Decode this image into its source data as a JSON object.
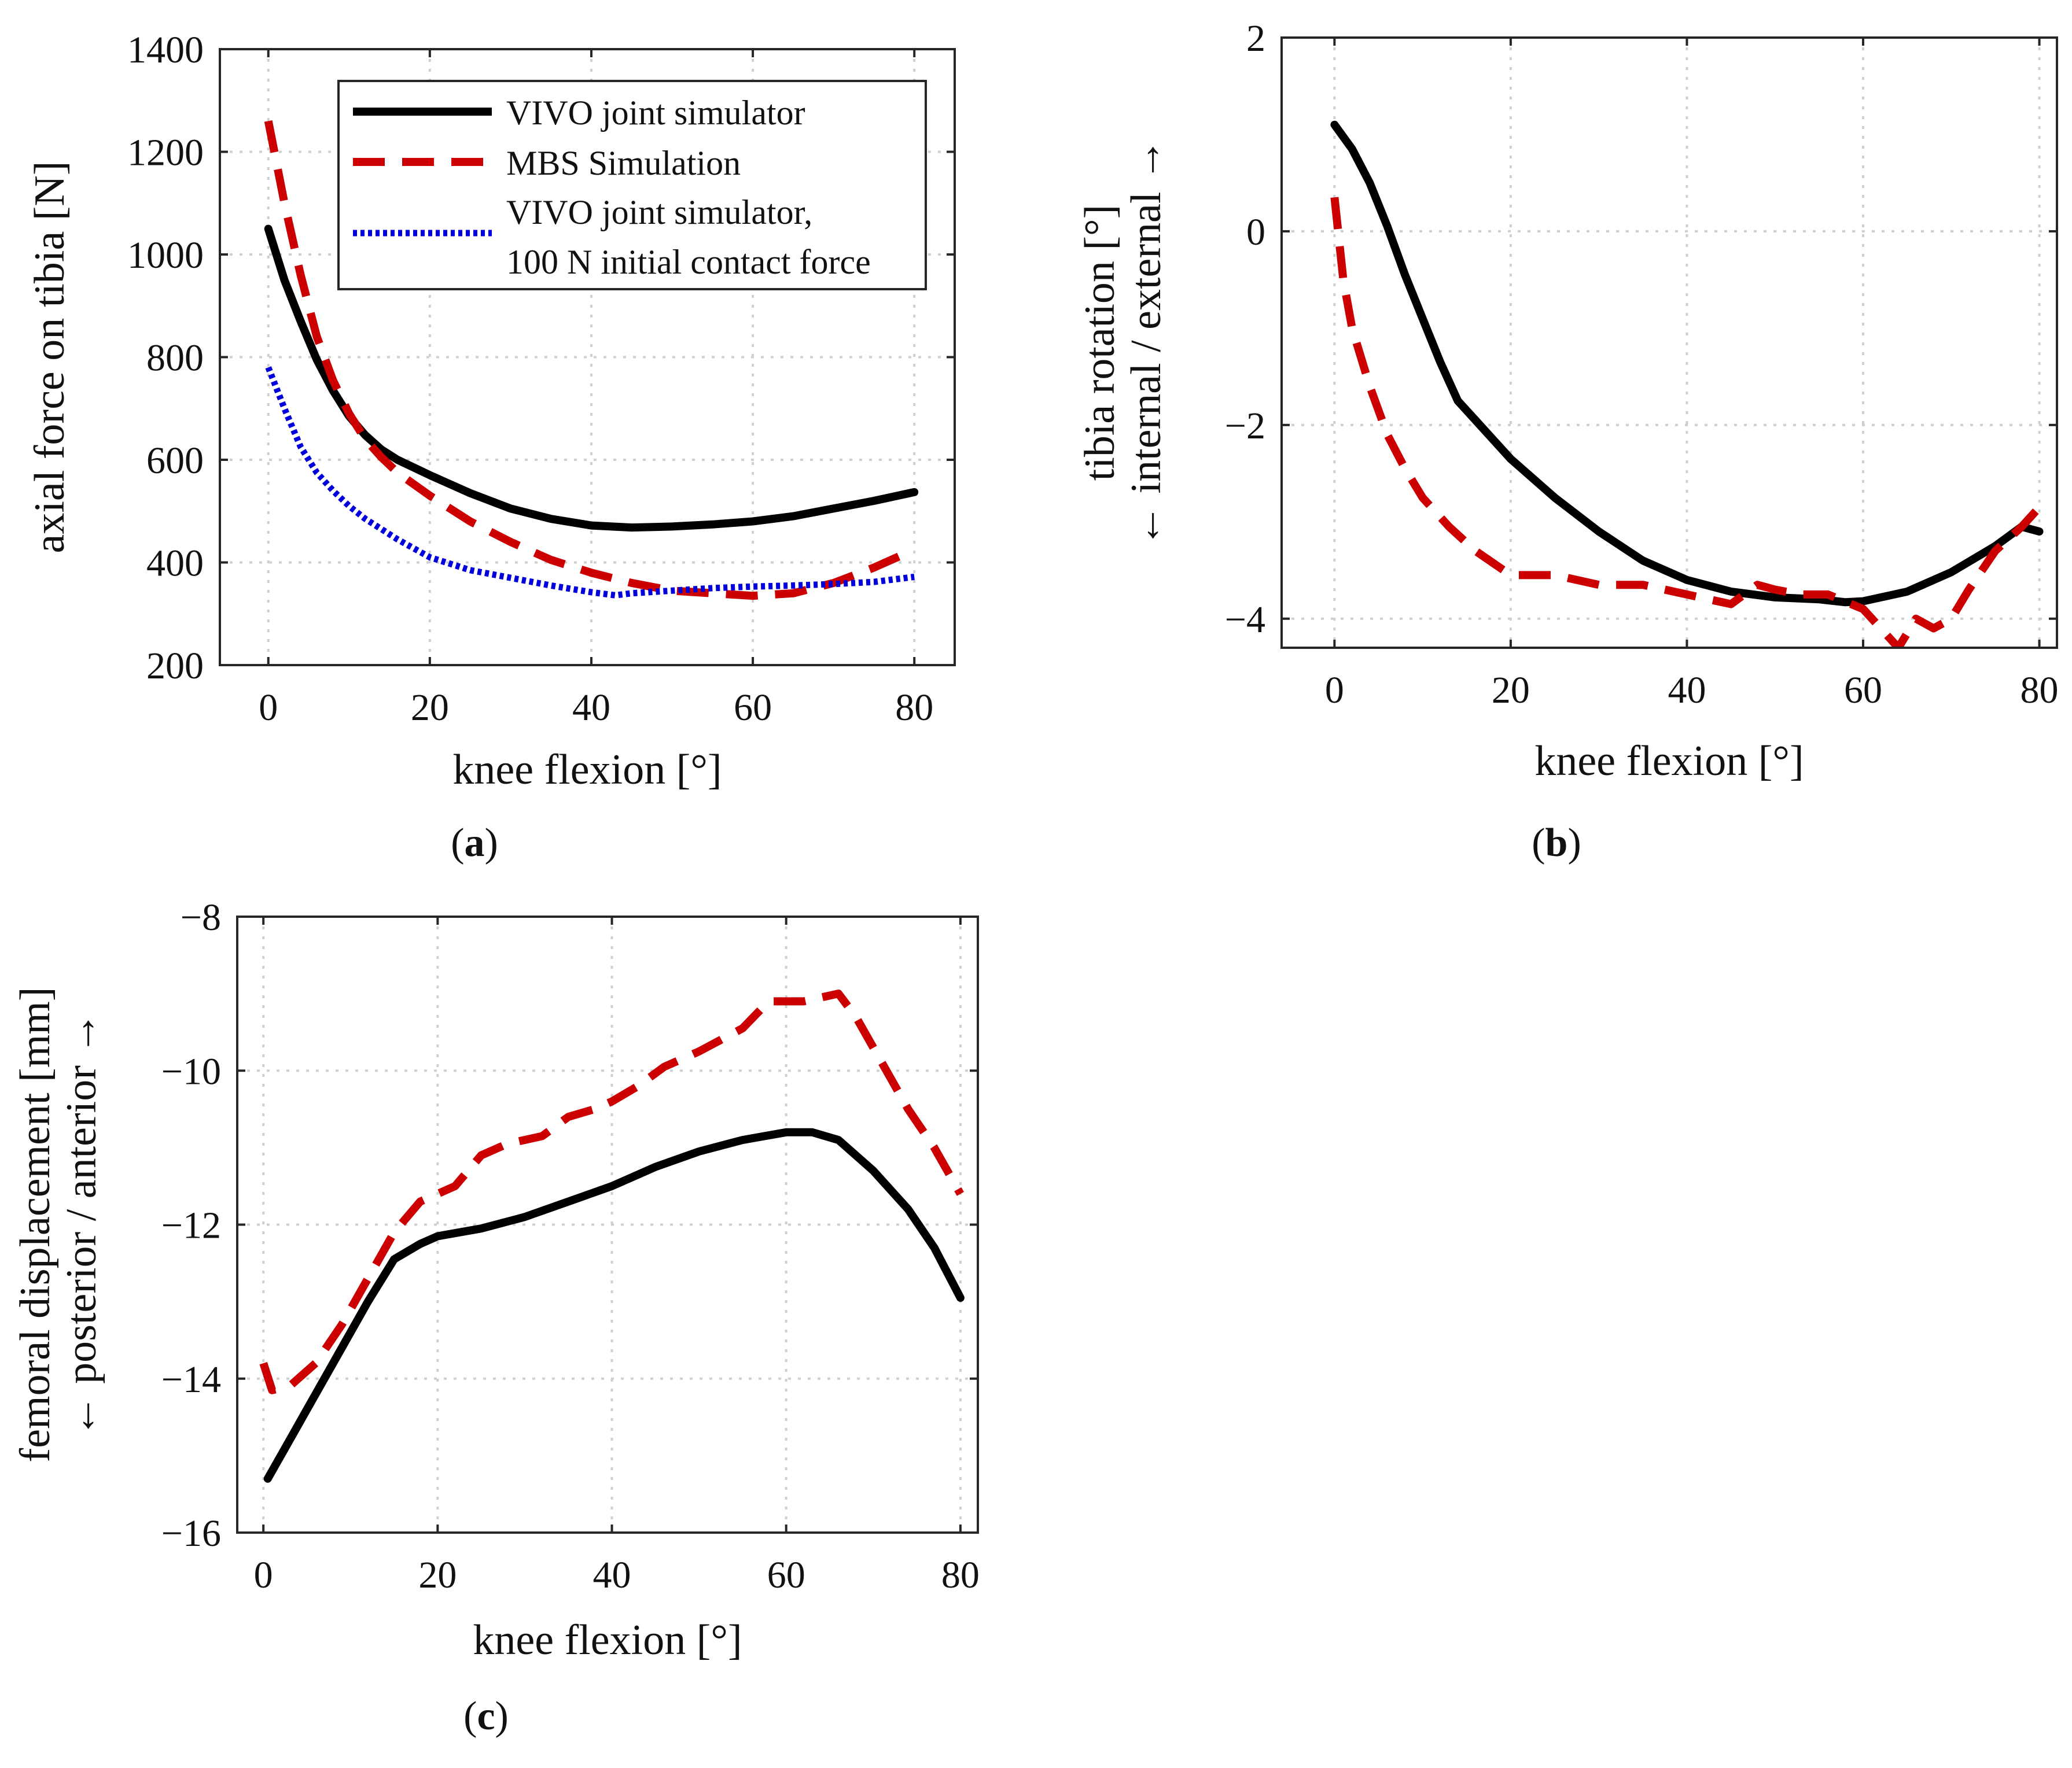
{
  "chart_data": [
    {
      "id": "a",
      "type": "line",
      "panel_label": "(a)",
      "xlabel": "knee flexion [°]",
      "ylabel": [
        "axial force on tibia [N]"
      ],
      "xlim": [
        -6,
        85
      ],
      "ylim": [
        200,
        1400
      ],
      "xticks": [
        0,
        20,
        40,
        60,
        80
      ],
      "yticks": [
        200,
        400,
        600,
        800,
        1000,
        1200,
        1400
      ],
      "grid": true,
      "legend_position": "top-right",
      "series": [
        {
          "name": "VIVO joint simulator",
          "color": "#000000",
          "style": "solid",
          "points": [
            [
              0,
              1050
            ],
            [
              2,
              950
            ],
            [
              4,
              870
            ],
            [
              6,
              795
            ],
            [
              8,
              735
            ],
            [
              10,
              685
            ],
            [
              12,
              648
            ],
            [
              14,
              620
            ],
            [
              16,
              600
            ],
            [
              20,
              570
            ],
            [
              25,
              535
            ],
            [
              30,
              505
            ],
            [
              35,
              485
            ],
            [
              40,
              472
            ],
            [
              45,
              468
            ],
            [
              50,
              470
            ],
            [
              55,
              474
            ],
            [
              60,
              480
            ],
            [
              65,
              490
            ],
            [
              70,
              505
            ],
            [
              75,
              520
            ],
            [
              80,
              537
            ]
          ]
        },
        {
          "name": "MBS Simulation",
          "color": "#cc0000",
          "style": "dashed",
          "points": [
            [
              0,
              1260
            ],
            [
              2,
              1100
            ],
            [
              4,
              960
            ],
            [
              6,
              840
            ],
            [
              8,
              755
            ],
            [
              10,
              690
            ],
            [
              12,
              640
            ],
            [
              14,
              605
            ],
            [
              16,
              575
            ],
            [
              20,
              530
            ],
            [
              25,
              480
            ],
            [
              30,
              440
            ],
            [
              35,
              405
            ],
            [
              40,
              380
            ],
            [
              45,
              360
            ],
            [
              50,
              345
            ],
            [
              55,
              340
            ],
            [
              60,
              335
            ],
            [
              65,
              340
            ],
            [
              70,
              360
            ],
            [
              75,
              390
            ],
            [
              80,
              425
            ]
          ]
        },
        {
          "name": "VIVO joint simulator,\n100 N initial contact force",
          "legend_lines": [
            "VIVO joint simulator,",
            "100 N initial contact force"
          ],
          "color": "#0000dd",
          "style": "dotted",
          "points": [
            [
              0,
              780
            ],
            [
              2,
              700
            ],
            [
              4,
              625
            ],
            [
              6,
              575
            ],
            [
              8,
              540
            ],
            [
              10,
              510
            ],
            [
              12,
              485
            ],
            [
              14,
              465
            ],
            [
              16,
              445
            ],
            [
              20,
              410
            ],
            [
              25,
              385
            ],
            [
              30,
              370
            ],
            [
              35,
              355
            ],
            [
              40,
              342
            ],
            [
              43,
              336
            ],
            [
              45,
              340
            ],
            [
              50,
              345
            ],
            [
              55,
              350
            ],
            [
              60,
              353
            ],
            [
              65,
              355
            ],
            [
              70,
              358
            ],
            [
              75,
              362
            ],
            [
              80,
              372
            ]
          ]
        }
      ]
    },
    {
      "id": "b",
      "type": "line",
      "panel_label": "(b)",
      "xlabel": "knee flexion [°]",
      "ylabel": [
        "tibia rotation [°]",
        "← internal / external →"
      ],
      "xlim": [
        -6,
        82
      ],
      "ylim": [
        -4.3,
        2
      ],
      "xticks": [
        0,
        20,
        40,
        60,
        80
      ],
      "yticks": [
        -4,
        -2,
        0,
        2
      ],
      "grid": true,
      "series": [
        {
          "name": "VIVO joint simulator",
          "color": "#000000",
          "style": "solid",
          "points": [
            [
              0,
              1.1
            ],
            [
              2,
              0.85
            ],
            [
              4,
              0.5
            ],
            [
              6,
              0.05
            ],
            [
              8,
              -0.45
            ],
            [
              10,
              -0.9
            ],
            [
              12,
              -1.35
            ],
            [
              14,
              -1.75
            ],
            [
              16,
              -1.95
            ],
            [
              20,
              -2.35
            ],
            [
              25,
              -2.75
            ],
            [
              30,
              -3.1
            ],
            [
              35,
              -3.4
            ],
            [
              40,
              -3.6
            ],
            [
              45,
              -3.72
            ],
            [
              50,
              -3.78
            ],
            [
              55,
              -3.8
            ],
            [
              58,
              -3.83
            ],
            [
              60,
              -3.82
            ],
            [
              65,
              -3.72
            ],
            [
              70,
              -3.52
            ],
            [
              75,
              -3.25
            ],
            [
              78,
              -3.05
            ],
            [
              80,
              -3.1
            ]
          ]
        },
        {
          "name": "MBS Simulation",
          "color": "#cc0000",
          "style": "dashed",
          "points": [
            [
              0,
              0.35
            ],
            [
              1,
              -0.5
            ],
            [
              2,
              -1.0
            ],
            [
              4,
              -1.6
            ],
            [
              6,
              -2.1
            ],
            [
              8,
              -2.45
            ],
            [
              10,
              -2.75
            ],
            [
              13,
              -3.05
            ],
            [
              16,
              -3.3
            ],
            [
              20,
              -3.55
            ],
            [
              25,
              -3.55
            ],
            [
              30,
              -3.65
            ],
            [
              35,
              -3.65
            ],
            [
              40,
              -3.75
            ],
            [
              45,
              -3.85
            ],
            [
              48,
              -3.65
            ],
            [
              50,
              -3.7
            ],
            [
              53,
              -3.75
            ],
            [
              56,
              -3.75
            ],
            [
              60,
              -3.9
            ],
            [
              62,
              -4.1
            ],
            [
              64,
              -4.3
            ],
            [
              66,
              -4.0
            ],
            [
              68,
              -4.1
            ],
            [
              70,
              -4.0
            ],
            [
              72,
              -3.7
            ],
            [
              75,
              -3.3
            ],
            [
              78,
              -3.05
            ],
            [
              80,
              -2.85
            ]
          ]
        }
      ]
    },
    {
      "id": "c",
      "type": "line",
      "panel_label": "(c)",
      "xlabel": "knee flexion [°]",
      "ylabel": [
        "femoral displacement [mm]",
        "← posterior / anterior →"
      ],
      "xlim": [
        -3,
        82
      ],
      "ylim": [
        -16,
        -8
      ],
      "xticks": [
        0,
        20,
        40,
        60,
        80
      ],
      "yticks": [
        -16,
        -14,
        -12,
        -10,
        -8
      ],
      "grid": true,
      "series": [
        {
          "name": "VIVO joint simulator",
          "color": "#000000",
          "style": "solid",
          "points": [
            [
              0.5,
              -15.3
            ],
            [
              3,
              -14.8
            ],
            [
              6,
              -14.2
            ],
            [
              9,
              -13.6
            ],
            [
              12,
              -13.0
            ],
            [
              15,
              -12.45
            ],
            [
              18,
              -12.25
            ],
            [
              20,
              -12.15
            ],
            [
              25,
              -12.05
            ],
            [
              30,
              -11.9
            ],
            [
              35,
              -11.7
            ],
            [
              40,
              -11.5
            ],
            [
              45,
              -11.25
            ],
            [
              50,
              -11.05
            ],
            [
              55,
              -10.9
            ],
            [
              60,
              -10.8
            ],
            [
              63,
              -10.8
            ],
            [
              66,
              -10.9
            ],
            [
              70,
              -11.3
            ],
            [
              74,
              -11.8
            ],
            [
              77,
              -12.3
            ],
            [
              80,
              -12.95
            ]
          ]
        },
        {
          "name": "MBS Simulation",
          "color": "#cc0000",
          "style": "dashed",
          "points": [
            [
              0,
              -13.8
            ],
            [
              1,
              -14.15
            ],
            [
              3,
              -14.1
            ],
            [
              6,
              -13.8
            ],
            [
              9,
              -13.3
            ],
            [
              12,
              -12.7
            ],
            [
              15,
              -12.1
            ],
            [
              18,
              -11.7
            ],
            [
              22,
              -11.5
            ],
            [
              25,
              -11.1
            ],
            [
              28,
              -10.95
            ],
            [
              32,
              -10.85
            ],
            [
              35,
              -10.6
            ],
            [
              38,
              -10.5
            ],
            [
              40,
              -10.4
            ],
            [
              43,
              -10.2
            ],
            [
              46,
              -9.95
            ],
            [
              50,
              -9.75
            ],
            [
              55,
              -9.45
            ],
            [
              58,
              -9.1
            ],
            [
              62,
              -9.1
            ],
            [
              66,
              -9.0
            ],
            [
              68,
              -9.3
            ],
            [
              71,
              -9.9
            ],
            [
              74,
              -10.5
            ],
            [
              77,
              -11.0
            ],
            [
              80,
              -11.6
            ]
          ]
        }
      ]
    }
  ]
}
